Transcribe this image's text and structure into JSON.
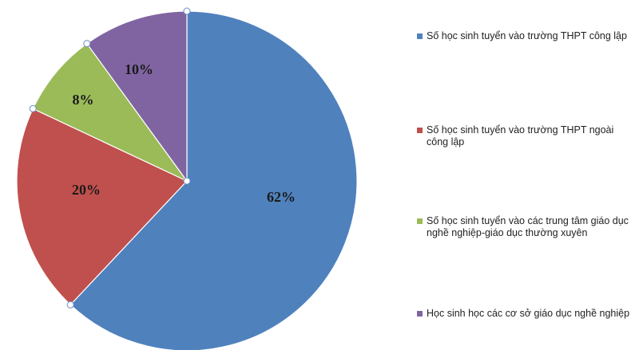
{
  "chart_data": {
    "type": "pie",
    "categories": [
      "Số học sinh tuyển vào trường THPT công lập",
      "Số học sinh tuyển vào trường THPT ngoài công lập",
      "Số học sinh tuyển vào các trung tâm giáo dục nghề nghiệp-giáo dục thường xuyên",
      "Học sinh học các cơ sở giáo dục nghề nghiệp"
    ],
    "values": [
      62,
      20,
      8,
      10
    ],
    "data_labels": [
      "62%",
      "20%",
      "8%",
      "10%"
    ],
    "colors": [
      "#4f81bd",
      "#c0504d",
      "#9bbb59",
      "#8064a2"
    ],
    "start_angle_deg": 0,
    "direction": "clockwise",
    "legend_position": "right",
    "title": ""
  }
}
